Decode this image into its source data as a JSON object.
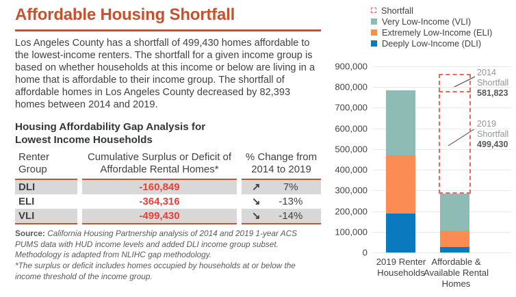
{
  "colors": {
    "accent": "#c5512f",
    "body_text": "#414042",
    "negative_value": "#ee3d36",
    "table_alt_row": "#d8d8d8",
    "note_text": "#58595b",
    "gridline": "#e9e9e9",
    "shortfall_dash": "#f2635c",
    "annotation_label": "#939598",
    "annotation_value": "#58595b"
  },
  "header": {
    "title": "Affordable Housing Shortfall"
  },
  "intro": {
    "text": "Los Angeles County has a shortfall of 499,430 homes affordable to the lowest-income renters. The shortfall for a given income group is based on whether households at this income or below are living in a home that is affordable to their income group. The shortfall of affordable homes in Los Angeles County decreased by 82,393 homes between 2014 and 2019."
  },
  "analysis": {
    "heading": "Housing Affordability Gap Analysis for Lowest Income Households"
  },
  "table": {
    "columns": [
      "Renter Group",
      "Cumulative Surplus or Deficit of Affordable Rental Homes*",
      "% Change from 2014 to 2019"
    ],
    "rows": [
      {
        "group": "DLI",
        "value": "-160,849",
        "trend_arrow": "↗",
        "change": "7%"
      },
      {
        "group": "ELI",
        "value": "-364,316",
        "trend_arrow": "↘",
        "change": "-13%"
      },
      {
        "group": "VLI",
        "value": "-499,430",
        "trend_arrow": "↘",
        "change": "-14%"
      }
    ]
  },
  "notes": {
    "source_label": "Source:",
    "source_text": " California Housing Partnership analysis of 2014 and 2019 1-year ACS PUMS data with HUD income levels and added DLI income group subset. Methodology is adapted from NLIHC gap methodology.",
    "footnote": "*The surplus or deficit includes homes occupied by households at or below the income threshold of the income group."
  },
  "chart_data": {
    "type": "bar",
    "stacked": true,
    "categories": [
      "2019 Renter Households",
      "Affordable & Available Rental Homes"
    ],
    "series": [
      {
        "name": "Deeply Low-Income (DLI)",
        "color": "#0b79be",
        "values": [
          190000,
          28000
        ]
      },
      {
        "name": "Extremely Low-Income (ELI)",
        "color": "#fa8c54",
        "values": [
          280000,
          78000
        ]
      },
      {
        "name": "Very Low-Income (VLI)",
        "color": "#8ebbb3",
        "values": [
          315000,
          177000
        ]
      }
    ],
    "totals": [
      785000,
      283000
    ],
    "ylim": [
      0,
      900000
    ],
    "ytick_step": 100000,
    "grid": true,
    "legend_position": "top-right",
    "legend": [
      {
        "label": "Shortfall",
        "style": "dashed",
        "color": "#f2635c"
      },
      {
        "label": "Very Low-Income (VLI)",
        "style": "solid",
        "color": "#8ebbb3"
      },
      {
        "label": "Extremely Low-Income (ELI)",
        "style": "solid",
        "color": "#fa8c54"
      },
      {
        "label": "Deeply Low-Income (DLI)",
        "style": "solid",
        "color": "#0b79be"
      }
    ],
    "annotations": [
      {
        "label": "2014 Shortfall",
        "value": "581,823",
        "box_from": 283000,
        "box_to": 864823
      },
      {
        "label": "2019 Shortfall",
        "value": "499,430",
        "box_from": 283000,
        "box_to": 782430
      }
    ]
  }
}
